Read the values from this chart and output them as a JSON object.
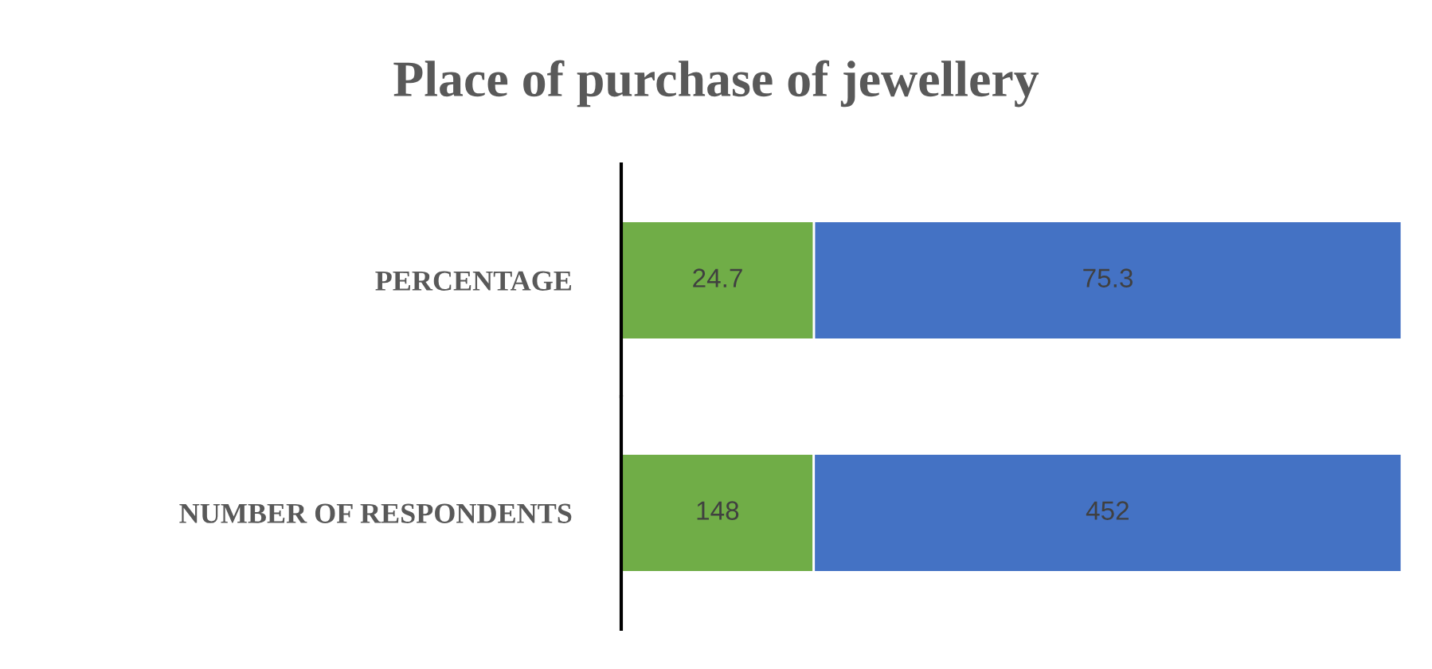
{
  "chart_data": [
    {
      "type": "bar",
      "orientation": "horizontal",
      "stacked": true,
      "data_labels": true,
      "tick_labels": "y",
      "title": "Place of purchase of jewellery",
      "categories": [
        "PERCENTAGE"
      ],
      "xlim": [
        0,
        100
      ],
      "series": [
        {
          "color": "#70ad47",
          "values": [
            24.7
          ]
        },
        {
          "color": "#4472c4",
          "values": [
            75.3
          ]
        }
      ]
    },
    {
      "type": "bar",
      "orientation": "horizontal",
      "stacked": true,
      "data_labels": true,
      "tick_labels": "y",
      "categories": [
        "NUMBER OF RESPONDENTS"
      ],
      "xlim": [
        0,
        600
      ],
      "series": [
        {
          "color": "#70ad47",
          "values": [
            148
          ]
        },
        {
          "color": "#4472c4",
          "values": [
            452
          ]
        }
      ]
    }
  ]
}
